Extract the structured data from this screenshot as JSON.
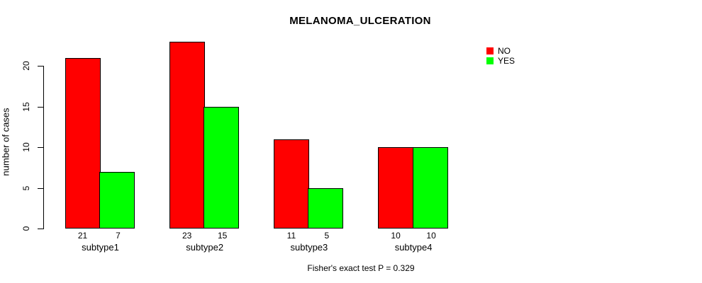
{
  "chart_data": {
    "type": "bar",
    "title": "MELANOMA_ULCERATION",
    "ylabel": "number of cases",
    "xlabel": "",
    "caption": "Fisher's exact test P = 0.329",
    "categories": [
      "subtype1",
      "subtype2",
      "subtype3",
      "subtype4"
    ],
    "series": [
      {
        "name": "NO",
        "color": "#ff0000",
        "values": [
          21,
          23,
          11,
          10
        ]
      },
      {
        "name": "YES",
        "color": "#00ff00",
        "values": [
          7,
          15,
          5,
          10
        ]
      }
    ],
    "bar_value_labels": [
      [
        "21",
        "7"
      ],
      [
        "23",
        "15"
      ],
      [
        "11",
        "5"
      ],
      [
        "10",
        "10"
      ]
    ],
    "yticks": [
      0,
      5,
      10,
      15,
      20
    ],
    "ylim": [
      0,
      23
    ],
    "grid": false,
    "legend_position": "top-right-outside",
    "legend_entries": [
      "NO",
      "YES"
    ],
    "colors": {
      "no": "#ff0000",
      "yes": "#00ff00",
      "axis": "#000000",
      "text": "#000000",
      "background": "#ffffff",
      "bar_border": "#000000"
    }
  }
}
